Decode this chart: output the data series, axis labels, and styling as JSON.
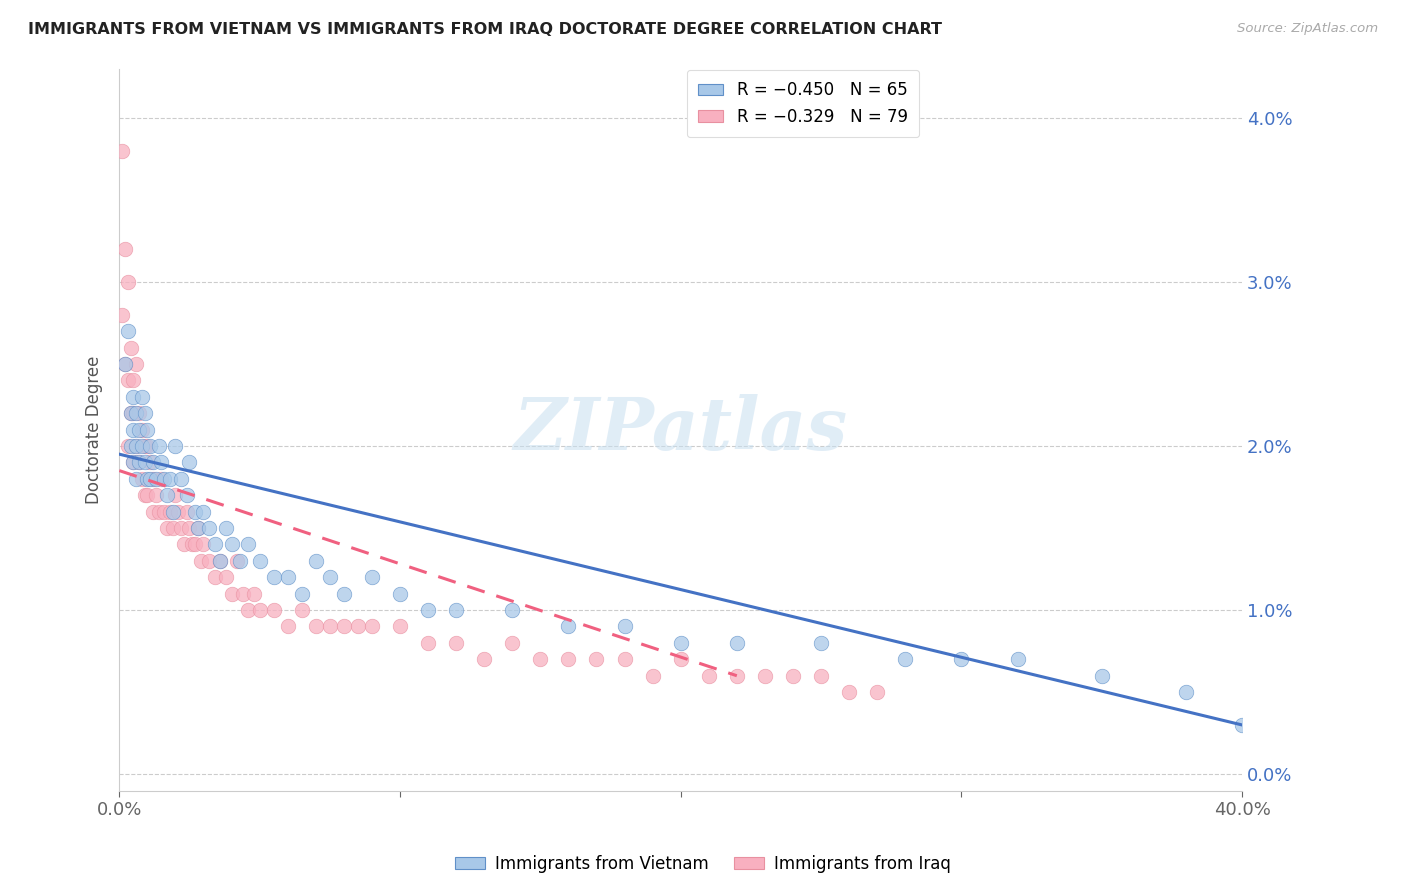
{
  "title": "IMMIGRANTS FROM VIETNAM VS IMMIGRANTS FROM IRAQ DOCTORATE DEGREE CORRELATION CHART",
  "source": "Source: ZipAtlas.com",
  "ylabel": "Doctorate Degree",
  "ytick_values": [
    0.0,
    0.01,
    0.02,
    0.03,
    0.04
  ],
  "xlim": [
    0.0,
    0.4
  ],
  "ylim": [
    -0.001,
    0.043
  ],
  "legend_vietnam": "R = −0.450   N = 65",
  "legend_iraq": "R = −0.329   N = 79",
  "color_vietnam": "#a8c8e8",
  "color_iraq": "#f8b0c0",
  "trendline_vietnam_color": "#4472c4",
  "trendline_iraq_color": "#f06080",
  "watermark": "ZIPatlas",
  "vietnam_x": [
    0.002,
    0.003,
    0.004,
    0.004,
    0.005,
    0.005,
    0.005,
    0.006,
    0.006,
    0.006,
    0.007,
    0.007,
    0.008,
    0.008,
    0.009,
    0.009,
    0.01,
    0.01,
    0.011,
    0.011,
    0.012,
    0.013,
    0.014,
    0.015,
    0.016,
    0.017,
    0.018,
    0.019,
    0.02,
    0.022,
    0.024,
    0.025,
    0.027,
    0.028,
    0.03,
    0.032,
    0.034,
    0.036,
    0.038,
    0.04,
    0.043,
    0.046,
    0.05,
    0.055,
    0.06,
    0.065,
    0.07,
    0.075,
    0.08,
    0.09,
    0.1,
    0.11,
    0.12,
    0.14,
    0.16,
    0.18,
    0.2,
    0.22,
    0.25,
    0.28,
    0.3,
    0.32,
    0.35,
    0.38,
    0.4
  ],
  "vietnam_y": [
    0.025,
    0.027,
    0.022,
    0.02,
    0.023,
    0.021,
    0.019,
    0.022,
    0.02,
    0.018,
    0.021,
    0.019,
    0.023,
    0.02,
    0.022,
    0.019,
    0.021,
    0.018,
    0.02,
    0.018,
    0.019,
    0.018,
    0.02,
    0.019,
    0.018,
    0.017,
    0.018,
    0.016,
    0.02,
    0.018,
    0.017,
    0.019,
    0.016,
    0.015,
    0.016,
    0.015,
    0.014,
    0.013,
    0.015,
    0.014,
    0.013,
    0.014,
    0.013,
    0.012,
    0.012,
    0.011,
    0.013,
    0.012,
    0.011,
    0.012,
    0.011,
    0.01,
    0.01,
    0.01,
    0.009,
    0.009,
    0.008,
    0.008,
    0.008,
    0.007,
    0.007,
    0.007,
    0.006,
    0.005,
    0.003
  ],
  "iraq_x": [
    0.001,
    0.001,
    0.002,
    0.002,
    0.003,
    0.003,
    0.003,
    0.004,
    0.004,
    0.005,
    0.005,
    0.005,
    0.006,
    0.006,
    0.007,
    0.007,
    0.008,
    0.008,
    0.009,
    0.009,
    0.01,
    0.01,
    0.011,
    0.012,
    0.012,
    0.013,
    0.014,
    0.015,
    0.016,
    0.017,
    0.018,
    0.019,
    0.02,
    0.021,
    0.022,
    0.023,
    0.024,
    0.025,
    0.026,
    0.027,
    0.028,
    0.029,
    0.03,
    0.032,
    0.034,
    0.036,
    0.038,
    0.04,
    0.042,
    0.044,
    0.046,
    0.048,
    0.05,
    0.055,
    0.06,
    0.065,
    0.07,
    0.075,
    0.08,
    0.085,
    0.09,
    0.1,
    0.11,
    0.12,
    0.13,
    0.14,
    0.15,
    0.16,
    0.17,
    0.18,
    0.19,
    0.2,
    0.21,
    0.22,
    0.23,
    0.24,
    0.25,
    0.26,
    0.27
  ],
  "iraq_y": [
    0.038,
    0.028,
    0.032,
    0.025,
    0.03,
    0.024,
    0.02,
    0.026,
    0.022,
    0.024,
    0.022,
    0.019,
    0.025,
    0.02,
    0.022,
    0.019,
    0.021,
    0.018,
    0.02,
    0.017,
    0.02,
    0.017,
    0.019,
    0.018,
    0.016,
    0.017,
    0.016,
    0.018,
    0.016,
    0.015,
    0.016,
    0.015,
    0.017,
    0.016,
    0.015,
    0.014,
    0.016,
    0.015,
    0.014,
    0.014,
    0.015,
    0.013,
    0.014,
    0.013,
    0.012,
    0.013,
    0.012,
    0.011,
    0.013,
    0.011,
    0.01,
    0.011,
    0.01,
    0.01,
    0.009,
    0.01,
    0.009,
    0.009,
    0.009,
    0.009,
    0.009,
    0.009,
    0.008,
    0.008,
    0.007,
    0.008,
    0.007,
    0.007,
    0.007,
    0.007,
    0.006,
    0.007,
    0.006,
    0.006,
    0.006,
    0.006,
    0.006,
    0.005,
    0.005
  ],
  "trendline_vietnam_start_y": 0.0195,
  "trendline_vietnam_end_y": 0.003,
  "trendline_iraq_start_y": 0.0185,
  "trendline_iraq_end_y": 0.006
}
